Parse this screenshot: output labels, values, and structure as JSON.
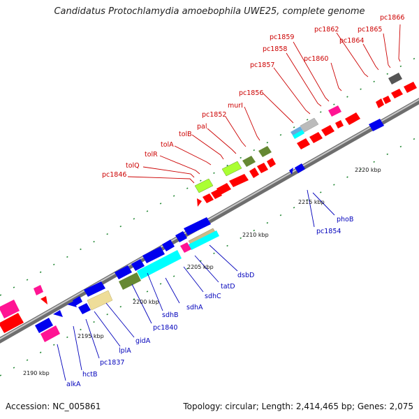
{
  "header": {
    "title": "Candidatus Protochlamydia amoebophila UWE25, complete genome"
  },
  "footer": {
    "accession": "Accession: NC_005861",
    "summary": "Topology: circular; Length: 2,414,465 bp; Genes: 2,075"
  },
  "colors": {
    "backbone": "#888888",
    "red": "#ff0000",
    "blue": "#0000ee",
    "magenta": "#ff1493",
    "cyan": "#00ffff",
    "lime": "#aaff33",
    "olive": "#668833",
    "tan": "#eedd99",
    "gray": "#bbbbbb",
    "dark_gray": "#555555",
    "skyblue": "#66aadd",
    "tick_green": "#228833",
    "label_red": "#cc0000",
    "label_blue": "#0000bb"
  },
  "scale": {
    "kbp_labels": [
      "2190 kbp",
      "2195 kbp",
      "2200 kbp",
      "2205 kbp",
      "2210 kbp",
      "2215 kbp",
      "2220 kbp"
    ]
  },
  "upper_labels": [
    "pc1846",
    "tolQ",
    "tolR",
    "tolA",
    "tolB",
    "pal",
    "pc1852",
    "murI",
    "pc1856",
    "pc1857",
    "pc1858",
    "pc1859",
    "pc1860",
    "pc1862",
    "pc1864",
    "pc1865",
    "pc1866"
  ],
  "lower_labels": [
    "alkA",
    "hctB",
    "pc1837",
    "lplA",
    "gidA",
    "pc1840",
    "sdhB",
    "sdhA",
    "sdhC",
    "tatD",
    "dsbD",
    "pc1854",
    "phoB"
  ]
}
